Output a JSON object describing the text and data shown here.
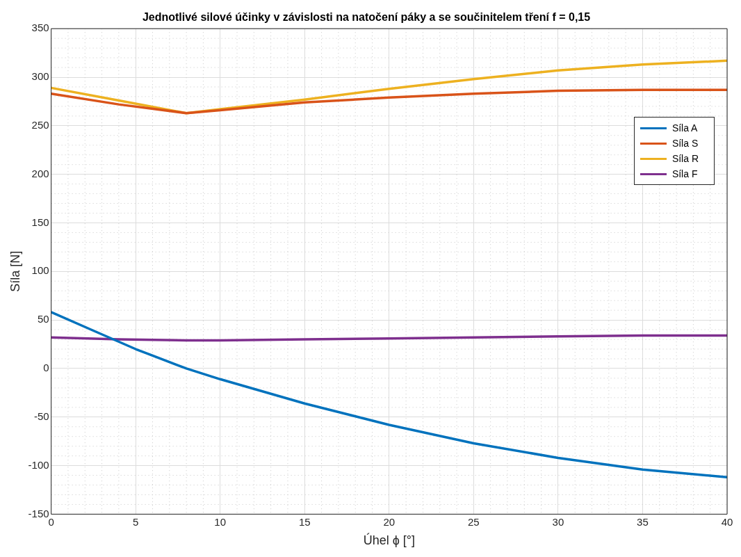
{
  "chart_data": {
    "type": "line",
    "title": "Jednotlivé silové účinky v závislosti na natočení páky a se součinitelem tření f = 0,15",
    "xlabel": "Úhel ϕ [°]",
    "ylabel": "Síla [N]",
    "x": [
      0,
      2.5,
      5,
      8,
      10,
      15,
      20,
      25,
      30,
      35,
      40
    ],
    "series": [
      {
        "name": "Síla A",
        "color": "#0072bd",
        "values": [
          58,
          39,
          20,
          0,
          -11,
          -36,
          -58,
          -77,
          -92,
          -104,
          -112
        ]
      },
      {
        "name": "Síla S",
        "color": "#d95319",
        "x": [
          0,
          4,
          8,
          10,
          15,
          20,
          25,
          30,
          35,
          40
        ],
        "values": [
          283,
          272,
          263,
          266,
          274,
          279,
          283,
          286,
          287,
          287
        ]
      },
      {
        "name": "Síla R",
        "color": "#edb120",
        "x": [
          0,
          4,
          8,
          10,
          15,
          20,
          25,
          30,
          35,
          40
        ],
        "values": [
          289,
          276,
          263,
          267,
          277,
          288,
          298,
          307,
          313,
          317
        ]
      },
      {
        "name": "Síla F",
        "color": "#7e2f8e",
        "x": [
          0,
          4,
          8,
          10,
          15,
          20,
          25,
          30,
          35,
          40
        ],
        "values": [
          32,
          30,
          29,
          29,
          30,
          31,
          32,
          33,
          34,
          34
        ]
      }
    ],
    "xlim": [
      0,
      40
    ],
    "xticks": [
      0,
      5,
      10,
      15,
      20,
      25,
      30,
      35,
      40
    ],
    "ylim": [
      -150,
      350
    ],
    "yticks": [
      -150,
      -100,
      -50,
      0,
      50,
      100,
      150,
      200,
      250,
      300,
      350
    ],
    "grid": true,
    "legend": "right",
    "marker": "none",
    "line_style": "solid"
  }
}
